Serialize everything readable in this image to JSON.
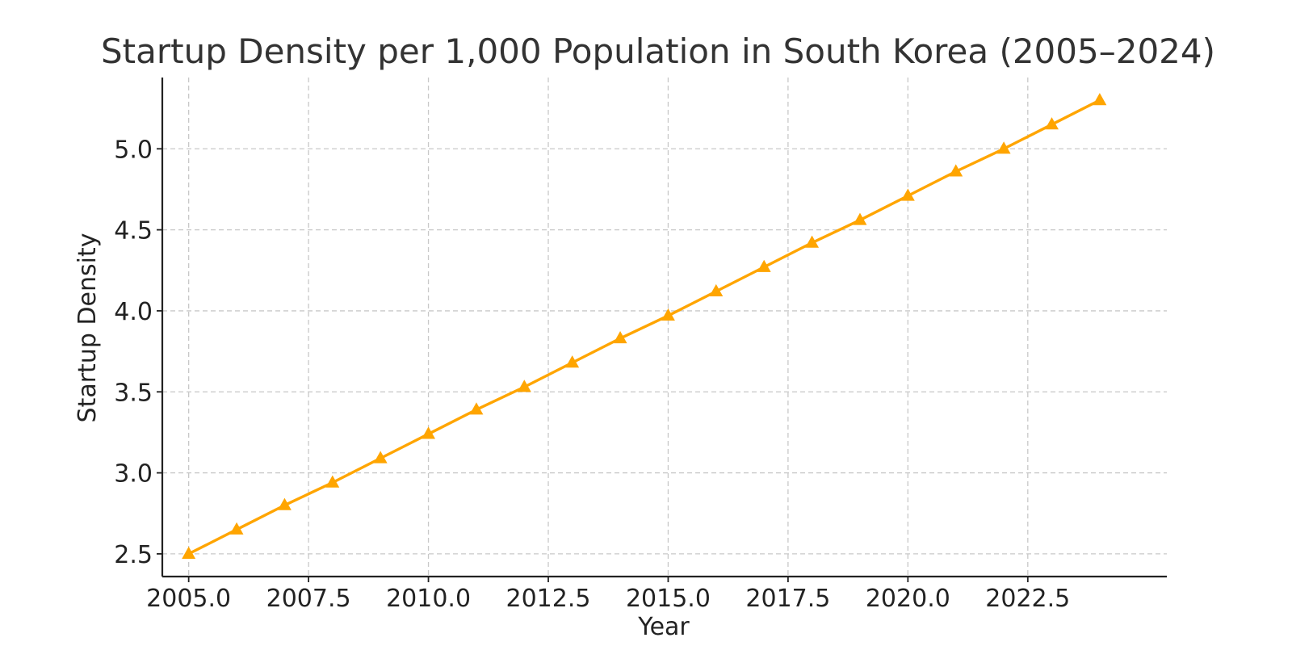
{
  "chart_data": {
    "type": "line",
    "title": "Startup Density per 1,000 Population in South Korea (2005–2024)",
    "xlabel": "Year",
    "ylabel": "Startup Density",
    "xlim": [
      2004.45,
      2025.4
    ],
    "ylim": [
      2.36,
      5.44
    ],
    "x_ticks": [
      2005.0,
      2007.5,
      2010.0,
      2012.5,
      2015.0,
      2017.5,
      2020.0,
      2022.5
    ],
    "x_tick_labels": [
      "2005.0",
      "2007.5",
      "2010.0",
      "2012.5",
      "2015.0",
      "2017.5",
      "2020.0",
      "2022.5"
    ],
    "y_ticks": [
      2.5,
      3.0,
      3.5,
      4.0,
      4.5,
      5.0
    ],
    "y_tick_labels": [
      "2.5",
      "3.0",
      "3.5",
      "4.0",
      "4.5",
      "5.0"
    ],
    "grid": true,
    "legend": "none",
    "series": [
      {
        "color": "#FFA500",
        "marker": "triangle-up",
        "x": [
          2005,
          2006,
          2007,
          2008,
          2009,
          2010,
          2011,
          2012,
          2013,
          2014,
          2015,
          2016,
          2017,
          2018,
          2019,
          2020,
          2021,
          2022,
          2023,
          2024
        ],
        "values": [
          2.5,
          2.65,
          2.8,
          2.94,
          3.09,
          3.24,
          3.39,
          3.53,
          3.68,
          3.83,
          3.97,
          4.12,
          4.27,
          4.42,
          4.56,
          4.71,
          4.86,
          5.0,
          5.15,
          5.3
        ]
      }
    ]
  }
}
